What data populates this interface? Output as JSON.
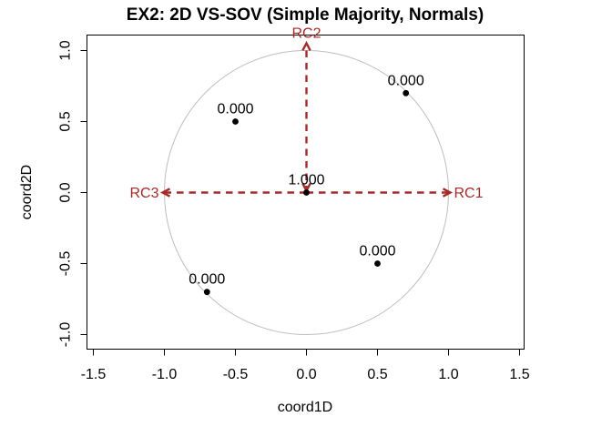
{
  "window": {
    "background": "#ffffff"
  },
  "chart_data": {
    "type": "scatter",
    "title": "EX2: 2D VS-SOV (Simple Majority, Normals)",
    "xlabel": "coord1D",
    "ylabel": "coord2D",
    "xlim": [
      -1.5,
      1.5
    ],
    "ylim": [
      -1.1,
      1.1
    ],
    "x_ticks": [
      "-1.5",
      "-1.0",
      "-0.5",
      "0.0",
      "0.5",
      "1.0",
      "1.5"
    ],
    "y_ticks": [
      "-1.0",
      "-0.5",
      "0.0",
      "0.5",
      "1.0"
    ],
    "grid": false,
    "legend": "none",
    "unit_circle_radius": 1.0,
    "points": [
      {
        "x": -0.5,
        "y": 0.5,
        "label": "0.000"
      },
      {
        "x": 0.7,
        "y": 0.7,
        "label": "0.000"
      },
      {
        "x": 0.5,
        "y": -0.5,
        "label": "0.000"
      },
      {
        "x": -0.7,
        "y": -0.7,
        "label": "0.000"
      },
      {
        "x": 0.0,
        "y": 0.0,
        "label": "1.000"
      }
    ],
    "axis_arrows": [
      {
        "name": "RC1",
        "x": 1.0,
        "y": 0.0
      },
      {
        "name": "RC2",
        "x": 0.0,
        "y": 1.0
      },
      {
        "name": "RC3",
        "x": -1.0,
        "y": 0.0
      }
    ],
    "colors": {
      "arrow": "#A52A2A",
      "circle": "#BDBDBD",
      "point": "#000000",
      "text": "#000000",
      "frame": "#000000"
    }
  }
}
